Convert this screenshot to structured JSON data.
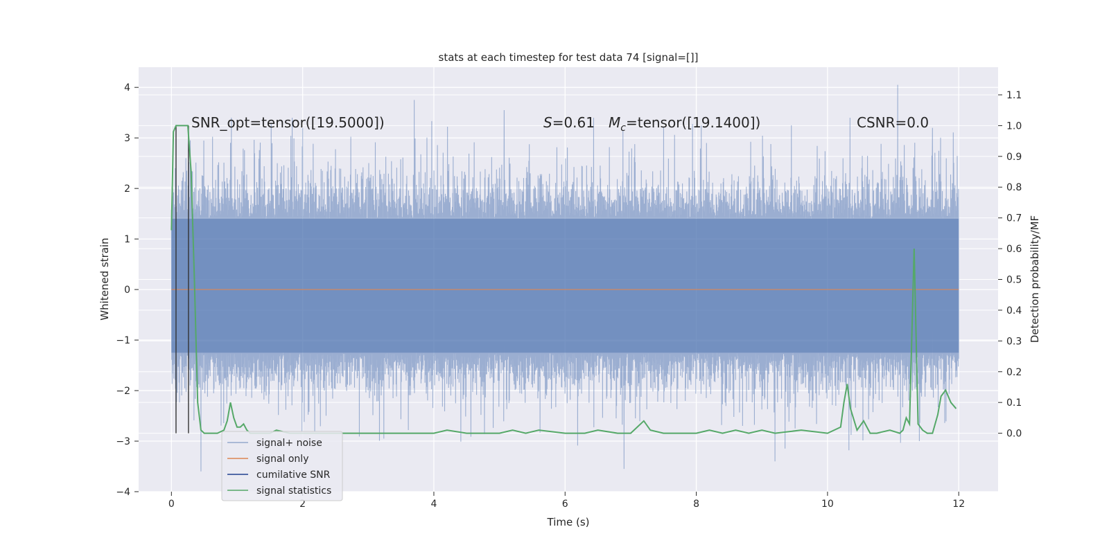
{
  "chart_data": {
    "type": "line",
    "title": "stats at each timestep for test data 74 [signal=[]]",
    "xlabel": "Time (s)",
    "ylabel": "Whitened strain",
    "ylabel_right": "Detection probability/MF",
    "xlim": [
      -0.5,
      12.6
    ],
    "ylim": [
      -4,
      4.4
    ],
    "ylim_right": [
      -0.19,
      1.19
    ],
    "x_ticks": [
      0,
      2,
      4,
      6,
      8,
      10,
      12
    ],
    "x_tick_labels": [
      "0",
      "2",
      "4",
      "6",
      "8",
      "10",
      "12"
    ],
    "y_ticks": [
      -4,
      -3,
      -2,
      -1,
      0,
      1,
      2,
      3,
      4
    ],
    "y_tick_labels": [
      "−4",
      "−3",
      "−2",
      "−1",
      "0",
      "1",
      "2",
      "3",
      "4"
    ],
    "y2_ticks": [
      0.0,
      0.1,
      0.2,
      0.3,
      0.4,
      0.5,
      0.6,
      0.7,
      0.8,
      0.9,
      1.0,
      1.1
    ],
    "y2_tick_labels": [
      "0.0",
      "0.1",
      "0.2",
      "0.3",
      "0.4",
      "0.5",
      "0.6",
      "0.7",
      "0.8",
      "0.9",
      "1.0",
      "1.1"
    ],
    "grid": true,
    "legend_position": "lower-left",
    "annotations": [
      "SNR_opt=tensor([19.5000])",
      "=0.61",
      "=tensor([19.1400])",
      "CSNR=0.0"
    ],
    "annotation_symbols": [
      "S",
      "M",
      "c"
    ],
    "colors": {
      "background": "#eaeaf2",
      "grid": "#ffffff",
      "noise": "#4c72b0",
      "signal": "#dd8452",
      "cumulative": "#1f3f8f",
      "statistics": "#55a868",
      "vline": "#333333"
    },
    "series": [
      {
        "name": "signal+ noise",
        "axis": "left",
        "description_type": "dense noise trace",
        "x_range": [
          0,
          12
        ],
        "envelope_typical": [
          -1.7,
          2.0
        ],
        "band_core": [
          -1.25,
          1.4
        ],
        "peaks": [
          {
            "x": 0.48,
            "y": 2.25
          },
          {
            "x": 2.0,
            "y": 3.2
          },
          {
            "x": 3.7,
            "y": 3.75
          },
          {
            "x": 5.07,
            "y": 3.55
          },
          {
            "x": 9.45,
            "y": 3.25
          },
          {
            "x": 11.07,
            "y": 4.05
          },
          {
            "x": 11.6,
            "y": 3.2
          }
        ],
        "troughs": [
          {
            "x": 0.45,
            "y": -3.6
          },
          {
            "x": 6.9,
            "y": -3.55
          },
          {
            "x": 9.2,
            "y": -3.4
          },
          {
            "x": 3.7,
            "y": -3.0
          },
          {
            "x": 11.4,
            "y": -3.0
          }
        ]
      },
      {
        "name": "signal only",
        "axis": "left",
        "x": [
          0,
          12
        ],
        "y": [
          0,
          0
        ]
      },
      {
        "name": "cumilative SNR",
        "axis": "left",
        "x": [],
        "y": []
      },
      {
        "name": "signal statistics",
        "axis": "right",
        "x": [
          0.0,
          0.03,
          0.07,
          0.1,
          0.15,
          0.2,
          0.25,
          0.3,
          0.35,
          0.4,
          0.45,
          0.5,
          0.6,
          0.7,
          0.8,
          0.85,
          0.9,
          0.95,
          1.0,
          1.05,
          1.1,
          1.15,
          1.2,
          1.3,
          1.5,
          1.6,
          1.8,
          2.0,
          2.5,
          3.0,
          3.5,
          4.0,
          4.2,
          4.5,
          5.0,
          5.2,
          5.4,
          5.6,
          6.0,
          6.3,
          6.5,
          6.8,
          7.0,
          7.1,
          7.2,
          7.3,
          7.5,
          8.0,
          8.2,
          8.4,
          8.6,
          8.8,
          9.0,
          9.2,
          9.6,
          10.0,
          10.2,
          10.25,
          10.3,
          10.35,
          10.45,
          10.55,
          10.65,
          10.75,
          10.95,
          11.1,
          11.15,
          11.2,
          11.25,
          11.32,
          11.38,
          11.45,
          11.52,
          11.6,
          11.68,
          11.73,
          11.8,
          11.88,
          11.96
        ],
        "y": [
          0.66,
          0.98,
          1.0,
          1.0,
          1.0,
          1.0,
          1.0,
          0.85,
          0.5,
          0.1,
          0.01,
          0.0,
          0.0,
          0.0,
          0.01,
          0.04,
          0.1,
          0.05,
          0.02,
          0.02,
          0.03,
          0.01,
          0.0,
          0.0,
          0.0,
          0.01,
          0.0,
          0.0,
          0.0,
          0.0,
          0.0,
          0.0,
          0.01,
          0.0,
          0.0,
          0.01,
          0.0,
          0.01,
          0.0,
          0.0,
          0.01,
          0.0,
          0.0,
          0.02,
          0.04,
          0.01,
          0.0,
          0.0,
          0.01,
          0.0,
          0.01,
          0.0,
          0.01,
          0.0,
          0.01,
          0.0,
          0.02,
          0.1,
          0.16,
          0.08,
          0.01,
          0.04,
          0.0,
          0.0,
          0.01,
          0.0,
          0.01,
          0.05,
          0.03,
          0.6,
          0.03,
          0.01,
          0.0,
          0.0,
          0.06,
          0.12,
          0.14,
          0.1,
          0.08
        ]
      }
    ],
    "vlines": [
      0.07,
      0.26
    ],
    "vline_range_right": [
      0.0,
      1.0
    ],
    "legend": [
      "signal+ noise",
      "signal only",
      "cumilative SNR",
      "signal statistics"
    ]
  }
}
